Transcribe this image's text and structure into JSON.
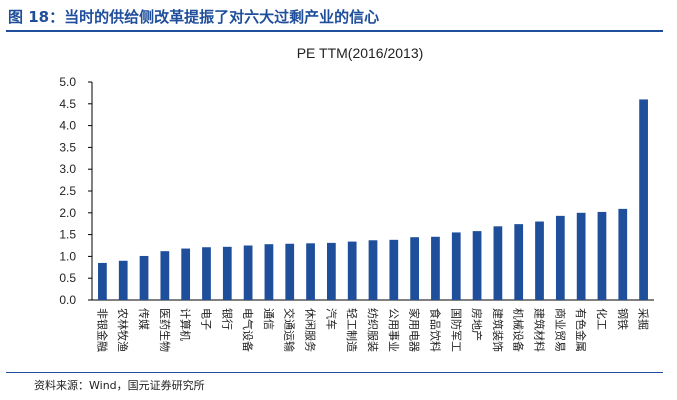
{
  "page": {
    "figure_title": "图 18：当时的供给侧改革提振了对六大过剩产业的信心",
    "source": "资料来源：Wind，国元证券研究所"
  },
  "chart_data": {
    "type": "bar",
    "title": "PE TTM(2016/2013)",
    "xlabel": "",
    "ylabel": "",
    "ylim": [
      0,
      5
    ],
    "yticks": [
      "0.0",
      "0.5",
      "1.0",
      "1.5",
      "2.0",
      "2.5",
      "3.0",
      "3.5",
      "4.0",
      "4.5",
      "5.0"
    ],
    "grid": false,
    "bar_color": "#1f4e9a",
    "categories": [
      "非银金融",
      "农林牧渔",
      "传媒",
      "医药生物",
      "计算机",
      "电子",
      "银行",
      "电气设备",
      "通信",
      "交通运输",
      "休闲服务",
      "汽车",
      "轻工制造",
      "纺织服装",
      "公用事业",
      "家用电器",
      "食品饮料",
      "国防军工",
      "房地产",
      "建筑装饰",
      "机械设备",
      "建筑材料",
      "商业贸易",
      "有色金属",
      "化工",
      "钢铁",
      "采掘"
    ],
    "values": [
      0.85,
      0.9,
      1.01,
      1.12,
      1.18,
      1.21,
      1.22,
      1.25,
      1.28,
      1.29,
      1.3,
      1.31,
      1.34,
      1.37,
      1.38,
      1.44,
      1.45,
      1.55,
      1.58,
      1.69,
      1.74,
      1.8,
      1.93,
      2.0,
      2.02,
      2.09,
      4.6
    ]
  }
}
